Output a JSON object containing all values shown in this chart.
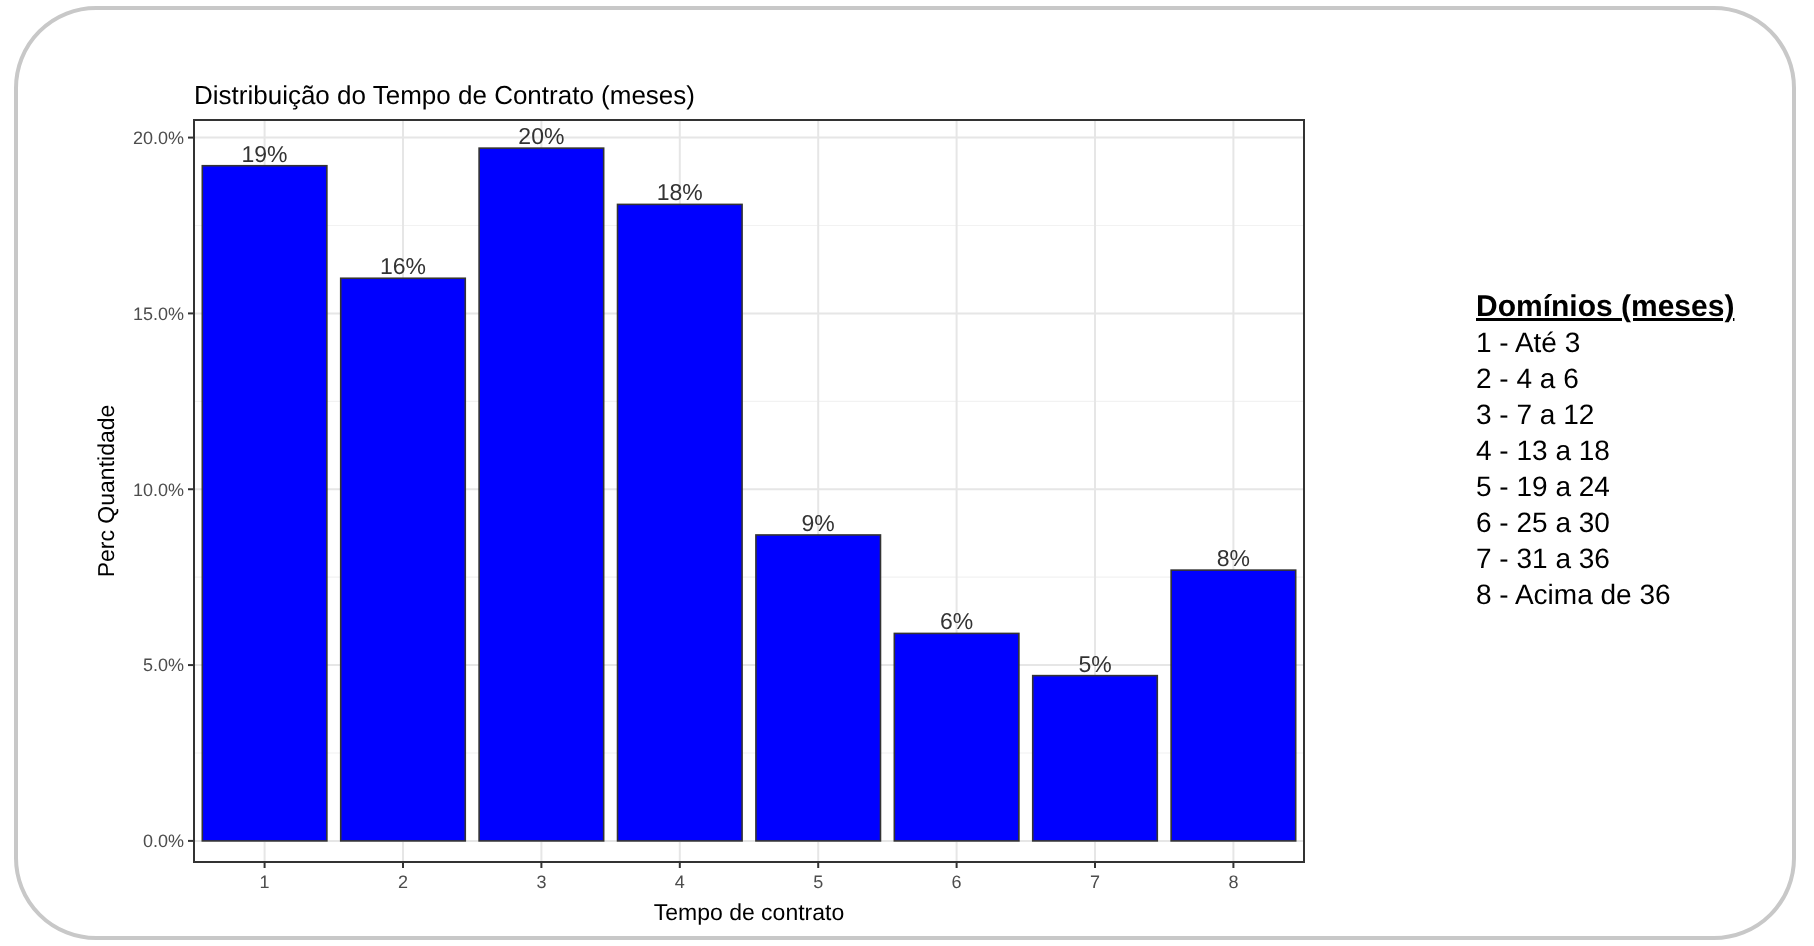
{
  "chart_data": {
    "type": "bar",
    "title": "Distribuição do Tempo de Contrato (meses)",
    "xlabel": "Tempo de contrato",
    "ylabel": "Perc Quantidade",
    "categories": [
      "1",
      "2",
      "3",
      "4",
      "5",
      "6",
      "7",
      "8"
    ],
    "values": [
      19.2,
      16.0,
      19.7,
      18.1,
      8.7,
      5.9,
      4.7,
      7.7
    ],
    "value_labels": [
      "19%",
      "16%",
      "20%",
      "18%",
      "9%",
      "6%",
      "5%",
      "8%"
    ],
    "color": "#0000ff",
    "ylim": [
      -0.6,
      20.5
    ],
    "yticks": [
      {
        "value": 0,
        "label": "0.0%"
      },
      {
        "value": 5,
        "label": "5.0%"
      },
      {
        "value": 10,
        "label": "10.0%"
      },
      {
        "value": 15,
        "label": "15.0%"
      },
      {
        "value": 20,
        "label": "20.0%"
      }
    ],
    "grid": true,
    "annotations": [
      "Domínios (meses)",
      "1 - Até 3",
      "2 - 4 a 6",
      "3 - 7 a 12",
      "4 - 13 a 18",
      "5 - 19 a 24",
      "6 - 25 a 30",
      "7 - 31 a 36",
      "8 - Acima de 36"
    ]
  }
}
